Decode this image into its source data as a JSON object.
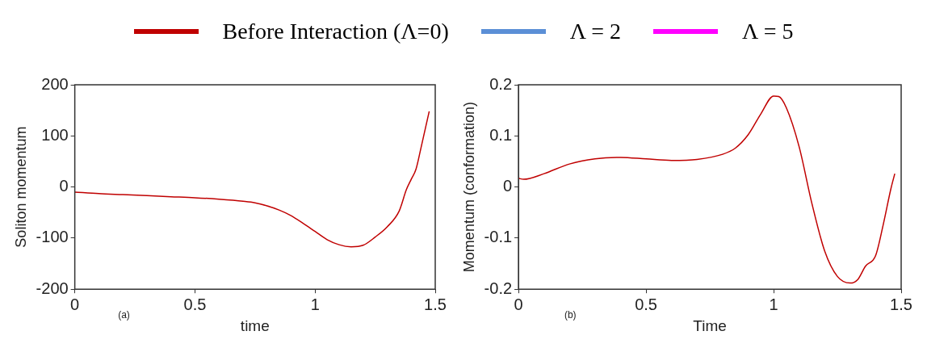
{
  "chart_data": [
    {
      "type": "line",
      "xlabel": "time",
      "ylabel": "Soliton momentum",
      "legend": "top",
      "annotations": [
        "(a)"
      ],
      "xlim": [
        0,
        1.5
      ],
      "xticks": [
        0,
        0.5,
        1,
        1.5
      ],
      "ylim": [
        -200,
        200
      ],
      "yticks": [
        -200,
        -100,
        0,
        100,
        200
      ],
      "grid": false,
      "marker": "none",
      "line_style": "solid",
      "x": [
        0,
        0.1,
        0.2,
        0.3,
        0.4,
        0.5,
        0.6,
        0.7,
        0.75,
        0.8,
        0.85,
        0.9,
        0.95,
        1.0,
        1.05,
        1.1,
        1.15,
        1.2,
        1.25,
        1.3,
        1.35,
        1.38,
        1.4,
        1.42,
        1.44,
        1.46,
        1.475
      ],
      "series": [
        {
          "name": "Before Interaction (Λ=0)",
          "color": "#c00000",
          "values": [
            -10,
            -13,
            -15,
            -17,
            -19,
            -21,
            -24,
            -28,
            -31,
            -37,
            -45,
            -56,
            -71,
            -87,
            -103,
            -113,
            -117,
            -114,
            -98,
            -78,
            -47,
            -5,
            15,
            35,
            75,
            117,
            148
          ]
        },
        {
          "name": "Λ = 2",
          "color": "#5b8fd6",
          "values": [
            null,
            null,
            null,
            null,
            null,
            null,
            null,
            null,
            null,
            null,
            null,
            null,
            null,
            null,
            null,
            null,
            null,
            null,
            null,
            null,
            null,
            null,
            null,
            null,
            null,
            null,
            null
          ]
        },
        {
          "name": "Λ = 5",
          "color": "#ff00ff",
          "values": [
            null,
            null,
            null,
            null,
            null,
            null,
            null,
            null,
            null,
            null,
            null,
            null,
            null,
            null,
            null,
            null,
            null,
            null,
            null,
            null,
            null,
            null,
            null,
            null,
            null,
            null,
            null
          ]
        }
      ]
    },
    {
      "type": "line",
      "xlabel": "Time",
      "ylabel": "Momentum (conformation)",
      "annotations": [
        "(b)"
      ],
      "xlim": [
        0,
        1.5
      ],
      "xticks": [
        0,
        0.5,
        1,
        1.5
      ],
      "ylim": [
        -0.2,
        0.2
      ],
      "yticks": [
        -0.2,
        -0.1,
        0,
        0.1,
        0.2
      ],
      "grid": false,
      "marker": "none",
      "line_style": "solid",
      "x": [
        0,
        0.02,
        0.1,
        0.2,
        0.3,
        0.4,
        0.5,
        0.6,
        0.7,
        0.8,
        0.85,
        0.9,
        0.95,
        1.0,
        1.02,
        1.05,
        1.1,
        1.15,
        1.2,
        1.25,
        1.3,
        1.33,
        1.36,
        1.4,
        1.43,
        1.46,
        1.475
      ],
      "series": [
        {
          "color": "#c00000",
          "values": [
            0.017,
            0.015,
            0.026,
            0.045,
            0.055,
            0.058,
            0.055,
            0.052,
            0.054,
            0.064,
            0.076,
            0.102,
            0.143,
            0.178,
            0.177,
            0.155,
            0.079,
            -0.032,
            -0.125,
            -0.175,
            -0.188,
            -0.181,
            -0.155,
            -0.134,
            -0.073,
            -0.003,
            0.026
          ]
        }
      ]
    }
  ]
}
